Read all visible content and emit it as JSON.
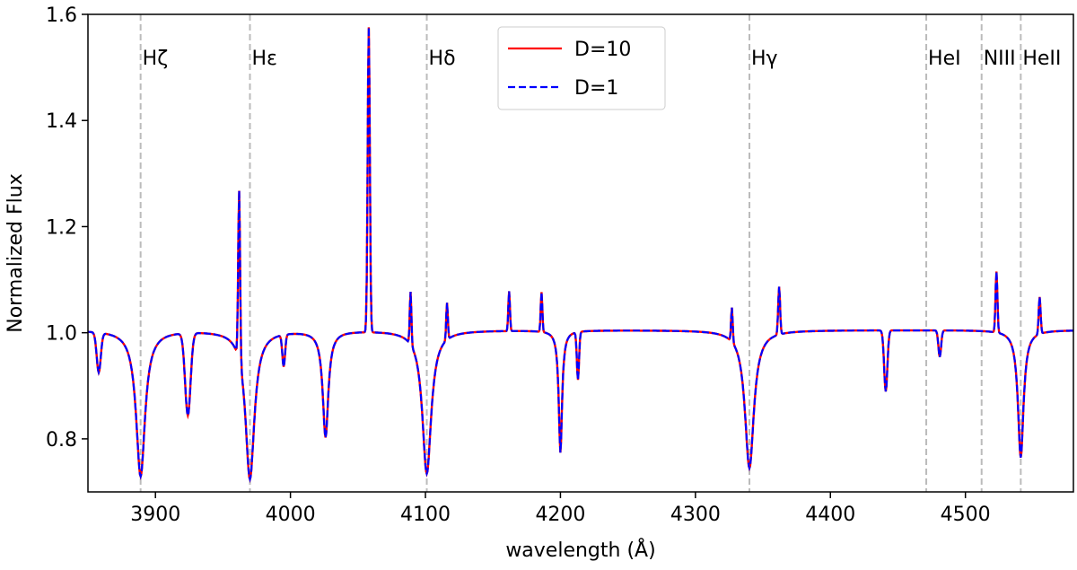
{
  "chart_data": {
    "type": "line",
    "xlabel": "wavelength (Å)",
    "ylabel": "Normalized Flux",
    "xlim": [
      3850,
      4580
    ],
    "ylim": [
      0.7,
      1.6
    ],
    "xticks": [
      3900,
      4000,
      4100,
      4200,
      4300,
      4400,
      4500
    ],
    "yticks": [
      0.8,
      1.0,
      1.2,
      1.4,
      1.6
    ],
    "ytick_labels": [
      "0.8",
      "1.0",
      "1.2",
      "1.4",
      "1.6"
    ],
    "grid": false,
    "legend_position": "top-center",
    "reference_lines": [
      {
        "x": 3889,
        "label": "Hζ"
      },
      {
        "x": 3970,
        "label": "Hε"
      },
      {
        "x": 4101,
        "label": "Hδ"
      },
      {
        "x": 4340,
        "label": "Hγ"
      },
      {
        "x": 4471,
        "label": "HeI"
      },
      {
        "x": 4512,
        "label": "NIII"
      },
      {
        "x": 4541,
        "label": "HeII"
      }
    ],
    "series": [
      {
        "name": "D=10",
        "color": "#ff0000",
        "style": "solid"
      },
      {
        "name": "D=1",
        "color": "#0000ff",
        "style": "dashed"
      }
    ],
    "continuum": 1.005,
    "lines": [
      [
        3858,
        -0.075,
        1.5
      ],
      [
        3889,
        -0.275,
        4
      ],
      [
        3924,
        -0.155,
        2
      ],
      [
        3962,
        0.32,
        0.7
      ],
      [
        3970,
        -0.28,
        4
      ],
      [
        3995,
        -0.06,
        1
      ],
      [
        4026,
        -0.2,
        2.5
      ],
      [
        4058,
        0.575,
        0.8
      ],
      [
        4089,
        0.1,
        0.6
      ],
      [
        4101,
        -0.27,
        4
      ],
      [
        4116,
        0.07,
        0.6
      ],
      [
        4162,
        0.075,
        0.6
      ],
      [
        4186,
        0.075,
        0.6
      ],
      [
        4200,
        -0.23,
        1.5
      ],
      [
        4213,
        -0.09,
        0.8
      ],
      [
        4327,
        0.065,
        0.6
      ],
      [
        4340,
        -0.26,
        4
      ],
      [
        4362,
        0.09,
        0.7
      ],
      [
        4441,
        -0.115,
        1.2
      ],
      [
        4481,
        -0.05,
        1
      ],
      [
        4523,
        0.115,
        0.7
      ],
      [
        4541,
        -0.24,
        2.5
      ],
      [
        4555,
        0.07,
        0.7
      ]
    ],
    "sample_step": 0.5
  }
}
